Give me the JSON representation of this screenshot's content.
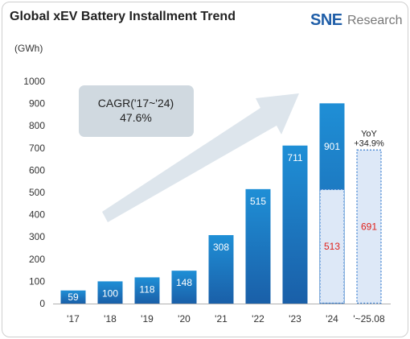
{
  "header": {
    "title": "Global xEV Battery Installment Trend",
    "logo_text": "SNE",
    "logo_subtext": "Research"
  },
  "annotation": {
    "cagr_line1": "CAGR('17~'24)",
    "cagr_line2": "47.6%",
    "yoy_line1": "YoY",
    "yoy_line2": "+34.9%"
  },
  "colors": {
    "bar_gradient_top": "#1f8fd6",
    "bar_gradient_bottom": "#1a5fa8",
    "partial_fill": "#dde8f7",
    "partial_border": "#3a7fd0",
    "partial_label": "#e0201a",
    "cagr_box": "#d0d9e0",
    "arrow": "#dde5ec"
  },
  "chart_data": {
    "type": "bar",
    "ylabel": "(GWh)",
    "ylim": [
      0,
      1000
    ],
    "yticks": [
      0,
      100,
      200,
      300,
      400,
      500,
      600,
      700,
      800,
      900,
      1000
    ],
    "categories": [
      "'17",
      "'18",
      "'19",
      "'20",
      "'21",
      "'22",
      "'23",
      "'24",
      "'~25.08"
    ],
    "values": [
      59,
      100,
      118,
      148,
      308,
      515,
      711,
      901,
      null
    ],
    "partial_values": [
      null,
      null,
      null,
      null,
      null,
      null,
      null,
      513,
      691
    ],
    "grid": false,
    "legend": "none"
  }
}
